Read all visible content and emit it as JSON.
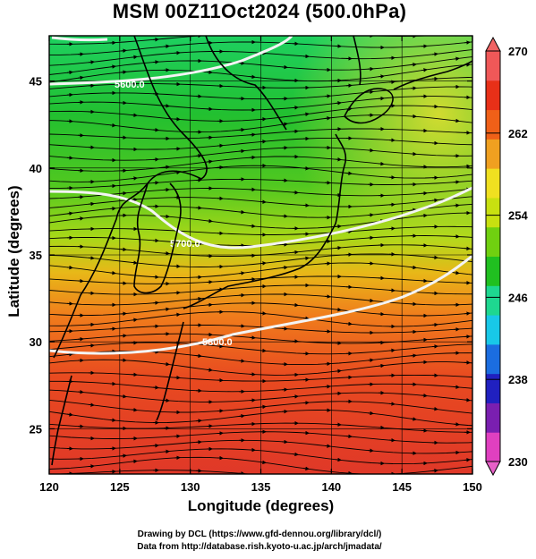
{
  "title": "MSM 00Z11Oct2024 (500.0hPa)",
  "axes": {
    "xlabel": "Longitude (degrees)",
    "ylabel": "Latitude  (degrees)",
    "x_ticks": [
      "120",
      "125",
      "130",
      "135",
      "140",
      "145",
      "150"
    ],
    "y_ticks": [
      "25",
      "30",
      "35",
      "40",
      "45"
    ],
    "xlim": [
      120,
      150
    ],
    "ylim": [
      22.4,
      47.6
    ]
  },
  "colorbar": {
    "ticks": [
      "270",
      "262",
      "254",
      "246",
      "238",
      "230"
    ],
    "range": [
      230,
      270
    ],
    "colors": [
      "#e040c0",
      "#7a1fb0",
      "#2020c0",
      "#1b6de0",
      "#18c8e8",
      "#1ed790",
      "#20c020",
      "#70d010",
      "#c8e010",
      "#f0e020",
      "#f0a020",
      "#f06018",
      "#e83018",
      "#f05858"
    ]
  },
  "contours": {
    "labels": [
      "5600.0",
      "5700.0",
      "5800.0"
    ]
  },
  "credits": {
    "line1": "Drawing by DCL (https://www.gfd-dennou.org/library/dcl/)",
    "line2": "Data from http://database.rish.kyoto-u.ac.jp/arch/jmadata/"
  }
}
